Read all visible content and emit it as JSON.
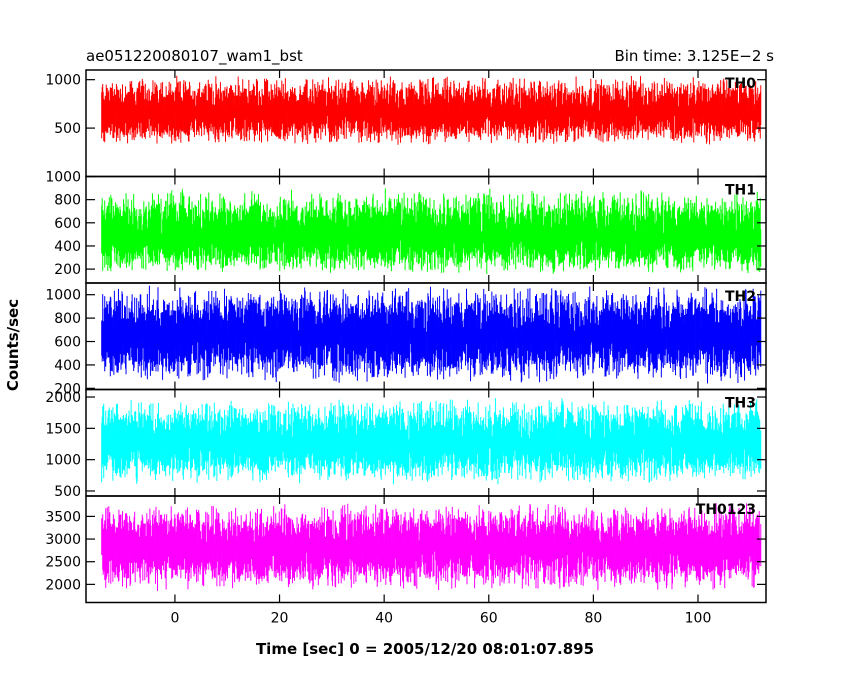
{
  "header": {
    "title": "ae051220080107_wam1_bst",
    "bin_time": "Bin time: 3.125E−2 s"
  },
  "chart_data": {
    "type": "line",
    "xlabel": "Time [sec] 0 = 2005/12/20 08:01:07.895",
    "ylabel": "Counts/sec",
    "xlim": [
      -17,
      113
    ],
    "x_data_range": [
      -14,
      112
    ],
    "x_ticks": [
      0,
      20,
      40,
      60,
      80,
      100
    ],
    "x_tick_labels": [
      "0",
      "20",
      "40",
      "60",
      "80",
      "100"
    ],
    "bin_time_s": 0.03125,
    "panels": [
      {
        "name": "TH0",
        "color": "#ff0000",
        "ylim": [
          0,
          1100
        ],
        "y_ticks": [
          500,
          1000
        ],
        "y_tick_labels": [
          "500",
          "1000"
        ],
        "baseline": 650,
        "low": 320,
        "high": 1050
      },
      {
        "name": "TH1",
        "color": "#00ff00",
        "ylim": [
          80,
          1000
        ],
        "y_ticks": [
          200,
          400,
          600,
          800,
          1000
        ],
        "y_tick_labels": [
          "200",
          "400",
          "600",
          "800",
          "1000"
        ],
        "baseline": 480,
        "low": 150,
        "high": 900
      },
      {
        "name": "TH2",
        "color": "#0000ff",
        "ylim": [
          190,
          1100
        ],
        "y_ticks": [
          200,
          400,
          600,
          800,
          1000
        ],
        "y_tick_labels": [
          "200",
          "400",
          "600",
          "800",
          "1000"
        ],
        "baseline": 650,
        "low": 240,
        "high": 1080
      },
      {
        "name": "TH3",
        "color": "#00ffff",
        "ylim": [
          420,
          2120
        ],
        "y_ticks": [
          500,
          1000,
          1500,
          2000
        ],
        "y_tick_labels": [
          "500",
          "1000",
          "1500",
          "2000"
        ],
        "baseline": 1250,
        "low": 600,
        "high": 2000
      },
      {
        "name": "TH0123",
        "color": "#ff00ff",
        "ylim": [
          1600,
          3950
        ],
        "y_ticks": [
          2000,
          2500,
          3000,
          3500
        ],
        "y_tick_labels": [
          "2000",
          "2500",
          "3000",
          "3500"
        ],
        "baseline": 2800,
        "low": 1850,
        "high": 3800
      }
    ]
  }
}
